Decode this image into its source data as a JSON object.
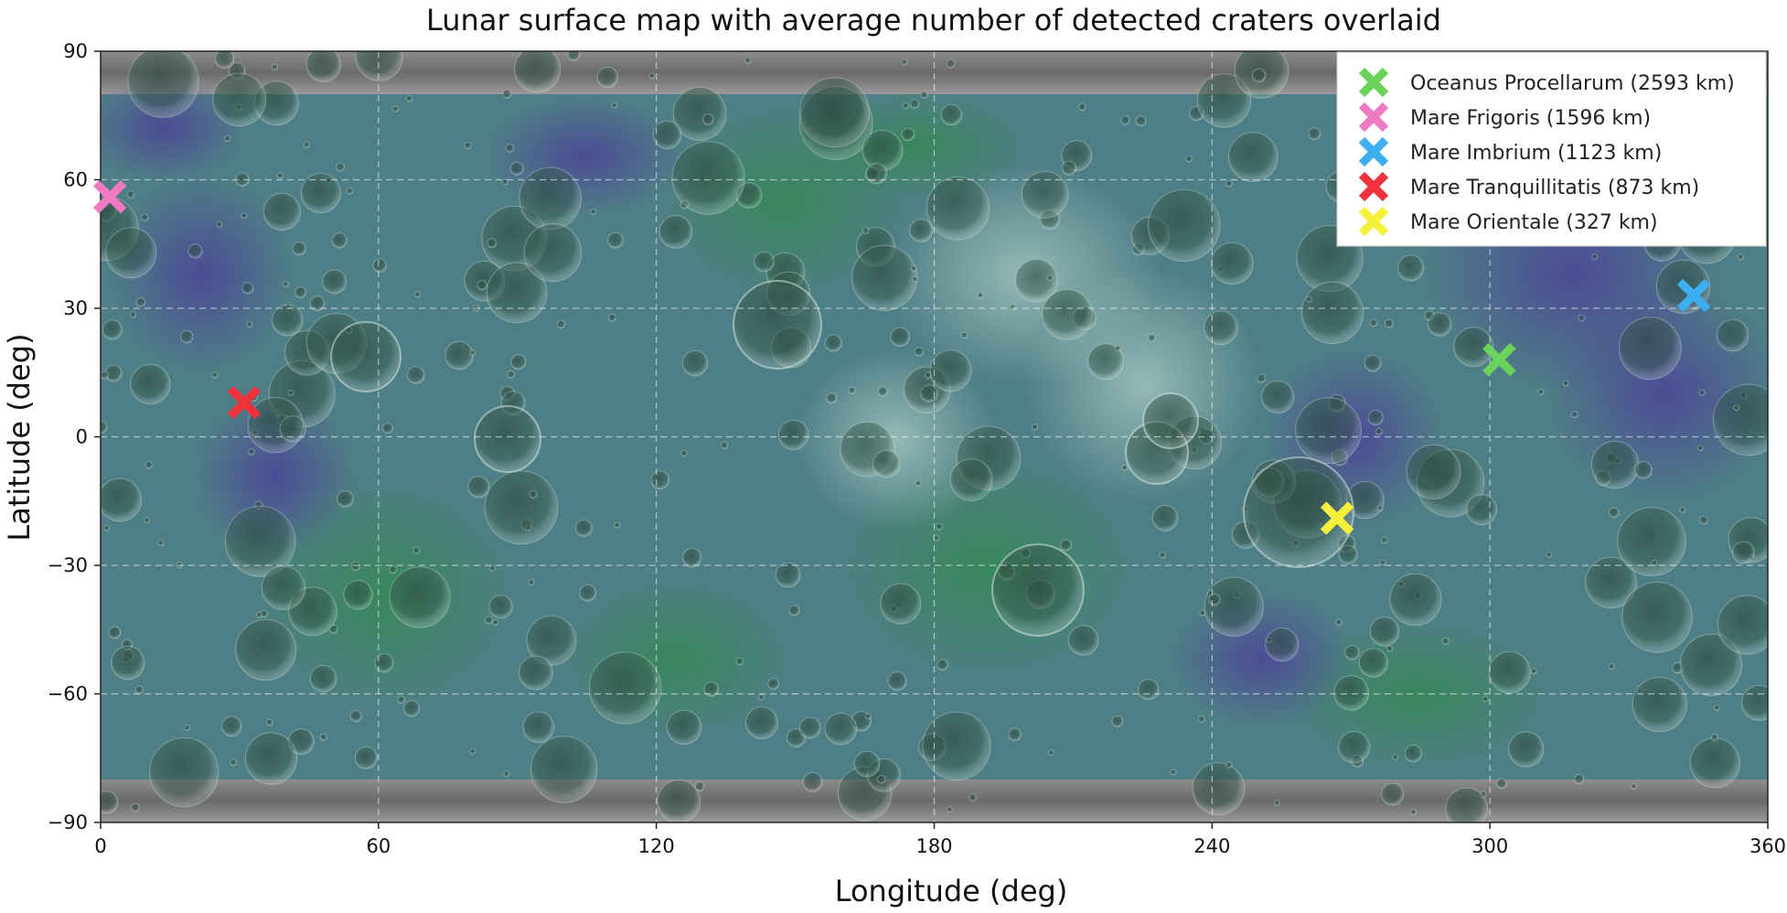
{
  "chart_data": {
    "type": "scatter",
    "title": "Lunar surface map with average number of detected craters overlaid",
    "xlabel": "Longitude (deg)",
    "ylabel": "Latitude (deg)",
    "xlim": [
      0,
      360
    ],
    "ylim": [
      -90,
      90
    ],
    "xticks": [
      0,
      60,
      120,
      180,
      240,
      300,
      360
    ],
    "xtick_labels": [
      "0",
      "60",
      "120",
      "180",
      "240",
      "300",
      "360"
    ],
    "yticks": [
      90,
      60,
      30,
      0,
      -30,
      -60,
      -90
    ],
    "ytick_labels": [
      "90",
      "60",
      "30",
      "0",
      "−30",
      "−60",
      "−90"
    ],
    "grid": true,
    "legend_position": "top-right",
    "background": "lunar surface image with crater-count color overlay (latitude -80 to 80)",
    "overlay_lat_range": [
      -80,
      80
    ],
    "series": [
      {
        "name": "Oceanus Procellarum (2593 km)",
        "x": 302,
        "y": 18,
        "color": "#6bd35a",
        "marker": "x"
      },
      {
        "name": "Mare Frigoris (1596 km)",
        "x": 2,
        "y": 56,
        "color": "#f07ac2",
        "marker": "x"
      },
      {
        "name": "Mare Imbrium (1123 km)",
        "x": 344,
        "y": 33,
        "color": "#3daef0",
        "marker": "x"
      },
      {
        "name": "Mare Tranquillitatis (873 km)",
        "x": 31,
        "y": 8,
        "color": "#f0323c",
        "marker": "x"
      },
      {
        "name": "Mare Orientale (327 km)",
        "x": 267,
        "y": -19,
        "color": "#f5f03a",
        "marker": "x"
      }
    ]
  }
}
